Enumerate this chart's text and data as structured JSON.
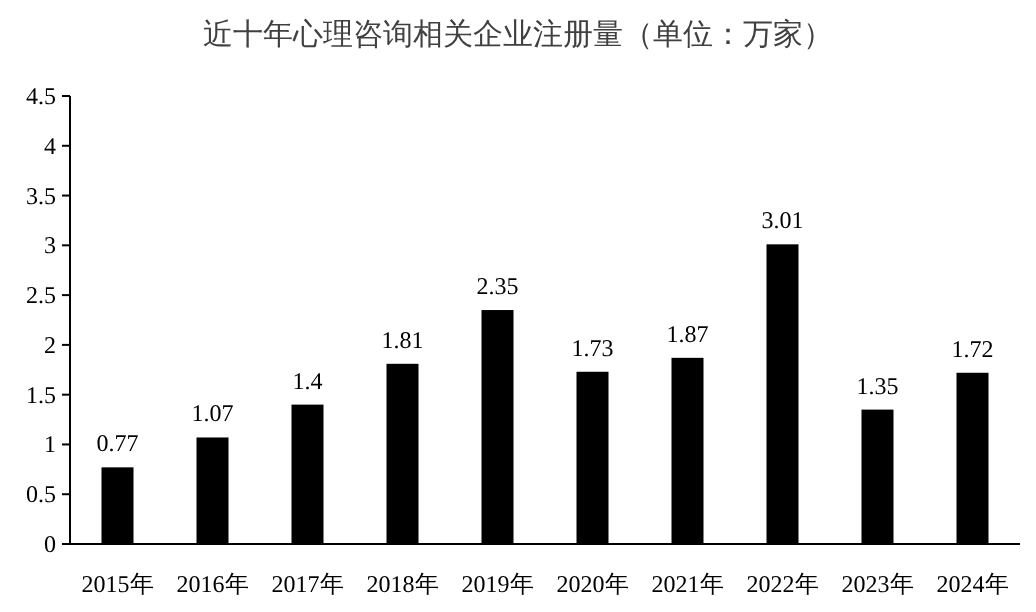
{
  "chart_data": {
    "type": "bar",
    "title": "近十年心理咨询相关企业注册量（单位：万家）",
    "categories": [
      "2015年",
      "2016年",
      "2017年",
      "2018年",
      "2019年",
      "2020年",
      "2021年",
      "2022年",
      "2023年",
      "2024年"
    ],
    "values": [
      0.77,
      1.07,
      1.4,
      1.81,
      2.35,
      1.73,
      1.87,
      3.01,
      1.35,
      1.72
    ],
    "color": "#000000",
    "ylim": [
      0,
      4.5
    ],
    "yticks": [
      0,
      0.5,
      1,
      1.5,
      2,
      2.5,
      3,
      3.5,
      4,
      4.5
    ],
    "data_labels": true
  }
}
